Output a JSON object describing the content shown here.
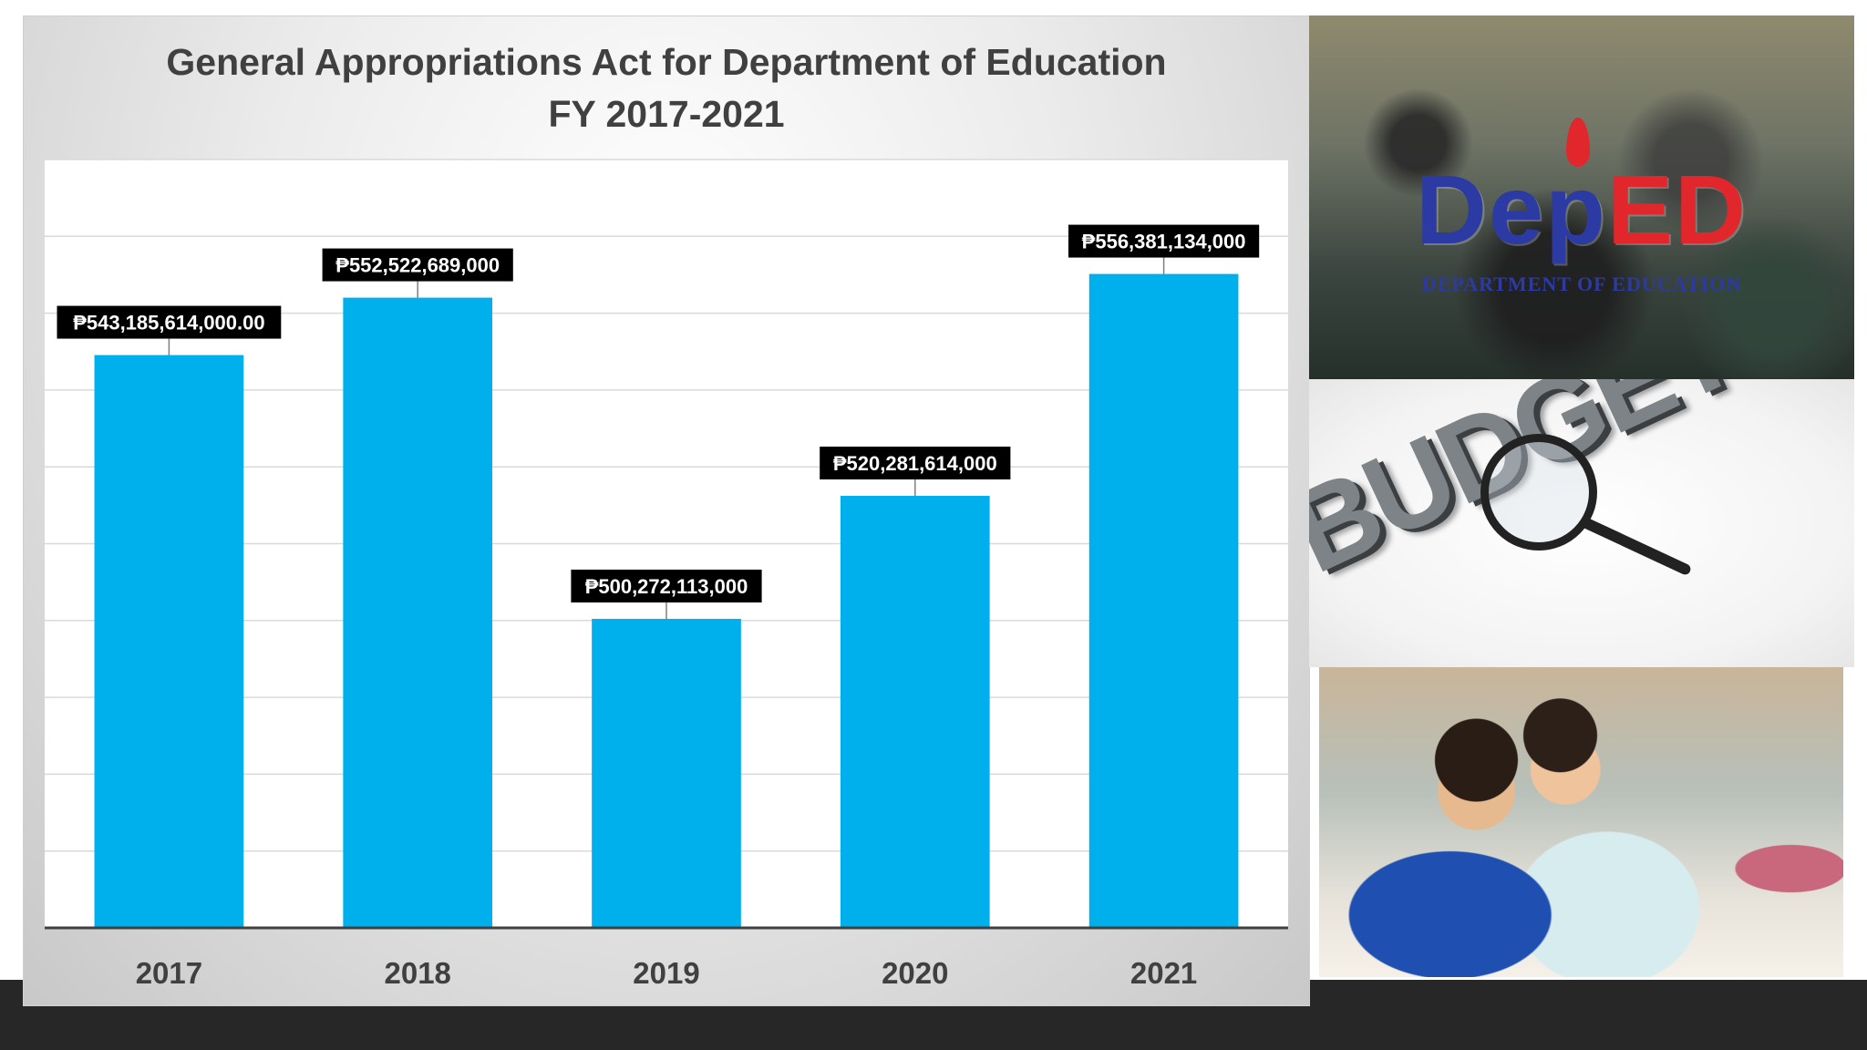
{
  "chart_data": {
    "type": "bar",
    "title": "General Appropriations Act for Department of Education",
    "subtitle": "FY 2017-2021",
    "categories": [
      "2017",
      "2018",
      "2019",
      "2020",
      "2021"
    ],
    "values": [
      543185614000,
      552522689000,
      500272113000,
      520281614000,
      556381134000
    ],
    "data_labels": [
      "₱543,185,614,000.00",
      "₱552,522,689,000",
      "₱500,272,113,000",
      "₱520,281,614,000",
      "₱556,381,134,000"
    ],
    "ylim": [
      450000000000,
      575000000000
    ],
    "grid": true,
    "xlabel": "",
    "ylabel": "",
    "colors": {
      "bar": "#00b0ec",
      "label_bg": "#000000",
      "label_text": "#ffffff",
      "axis_text": "#404040",
      "grid": "#d9d9d9"
    }
  },
  "images": {
    "deped": {
      "logo_text": "DepED",
      "subtitle": "DEPARTMENT OF EDUCATION"
    },
    "budget": {
      "word": "BUDGET"
    },
    "kids": {}
  }
}
